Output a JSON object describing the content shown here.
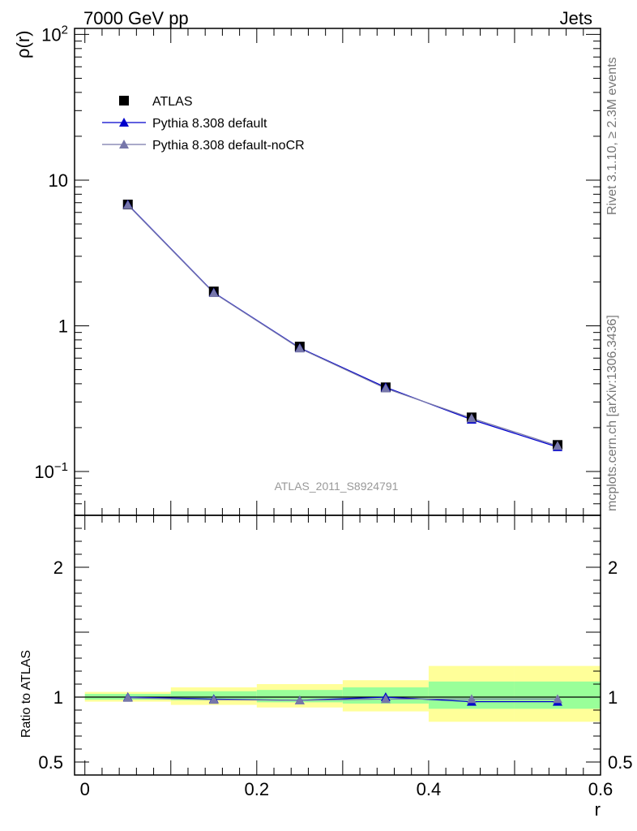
{
  "header": {
    "left": "7000 GeV pp",
    "right": "Jets"
  },
  "side_labels": {
    "rivet": "Rivet 3.1.10, ≥ 2.3M events",
    "source": "mcplots.cern.ch [arXiv:1306.3436]"
  },
  "watermark": "ATLAS_2011_S8924791",
  "chart_data": [
    {
      "panel": "main",
      "type": "line",
      "ylabel": "ρ(r)",
      "yscale": "log",
      "ylim": [
        0.05,
        110
      ],
      "xlim": [
        -0.012,
        0.6
      ],
      "ytick_labels": [
        "10−1",
        "1",
        "10",
        "102"
      ],
      "x": [
        0.05,
        0.15,
        0.25,
        0.35,
        0.45,
        0.55
      ],
      "series": [
        {
          "name": "ATLAS",
          "marker": "square",
          "color": "#000000",
          "values": [
            6.8,
            1.72,
            0.72,
            0.378,
            0.235,
            0.152
          ]
        },
        {
          "name": "Pythia 8.308 default",
          "marker": "triangle",
          "color": "#0000cc",
          "values": [
            6.8,
            1.69,
            0.705,
            0.378,
            0.227,
            0.147
          ]
        },
        {
          "name": "Pythia 8.308 default-noCR",
          "marker": "triangle",
          "color": "#7777aa",
          "values": [
            6.75,
            1.68,
            0.7,
            0.372,
            0.232,
            0.15
          ]
        }
      ],
      "legend_position": "top-left"
    },
    {
      "panel": "ratio",
      "type": "line",
      "xlabel": "r",
      "ylabel": "Ratio to ATLAS",
      "ylim": [
        0.4,
        2.4
      ],
      "xlim": [
        -0.012,
        0.6
      ],
      "x_ticks": [
        "0",
        "0.2",
        "0.4",
        "0.6"
      ],
      "y_ticks": [
        "0.5",
        "1",
        "2"
      ],
      "x": [
        0.05,
        0.15,
        0.25,
        0.35,
        0.45,
        0.55
      ],
      "bins": [
        [
          0.0,
          0.1
        ],
        [
          0.1,
          0.2
        ],
        [
          0.2,
          0.3
        ],
        [
          0.3,
          0.4
        ],
        [
          0.4,
          0.5
        ],
        [
          0.5,
          0.6
        ]
      ],
      "band_stat": [
        [
          0.98,
          1.025
        ],
        [
          0.975,
          1.045
        ],
        [
          0.96,
          1.055
        ],
        [
          0.95,
          1.075
        ],
        [
          0.91,
          1.12
        ],
        [
          0.91,
          1.12
        ]
      ],
      "band_total": [
        [
          0.965,
          1.04
        ],
        [
          0.94,
          1.075
        ],
        [
          0.92,
          1.1
        ],
        [
          0.89,
          1.13
        ],
        [
          0.81,
          1.24
        ],
        [
          0.81,
          1.24
        ]
      ],
      "series": [
        {
          "name": "Pythia 8.308 default",
          "color": "#0000cc",
          "values": [
            1.0,
            0.985,
            0.975,
            1.0,
            0.965,
            0.965
          ]
        },
        {
          "name": "Pythia 8.308 default-noCR",
          "color": "#7777aa",
          "values": [
            0.995,
            0.98,
            0.975,
            0.985,
            0.985,
            0.985
          ]
        }
      ]
    }
  ]
}
